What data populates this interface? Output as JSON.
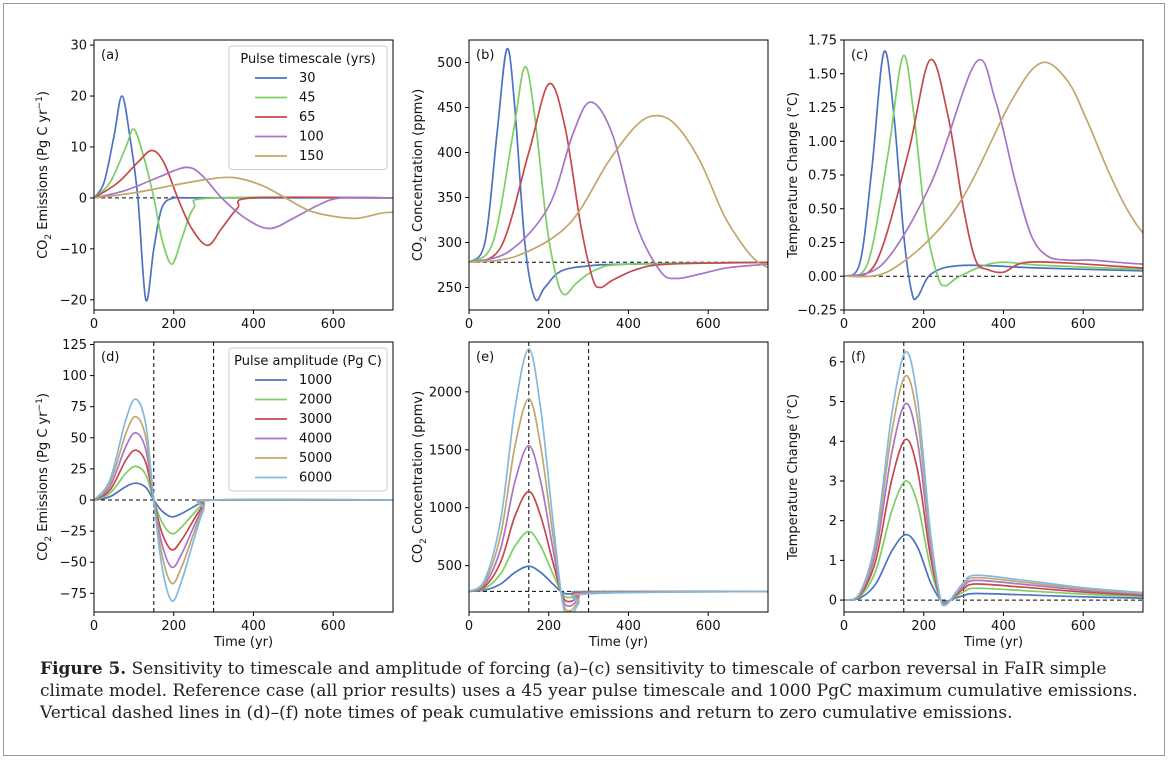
{
  "figure": {
    "caption_label": "Figure 5.",
    "caption_text": " Sensitivity to timescale and amplitude of forcing (a)–(c) sensitivity to timescale of carbon reversal in FaIR simple climate model. Reference case (all prior results) uses a 45 year pulse timescale and 1000 PgC maximum cumulative emissions. Vertical dashed lines in (d)–(f) note times of peak cumulative emissions and return to zero cumulative emissions."
  },
  "colors": [
    "#4c72c4",
    "#7ccf62",
    "#c6484a",
    "#a875c6",
    "#c2a66c",
    "#83b8df"
  ],
  "chart_data": [
    {
      "id": "a",
      "panel_label": "(a)",
      "type": "line",
      "xlabel": "",
      "ylabel": "CO2 Emissions (Pg C yr−1)",
      "xlim": [
        0,
        750
      ],
      "ylim": [
        -22,
        31
      ],
      "xticks": [
        "0",
        "200",
        "400",
        "600"
      ],
      "yticks": [
        "−20",
        "−10",
        "0",
        "10",
        "20",
        "30"
      ],
      "legend_title": "Pulse timescale (yrs)",
      "legend_loc": "upper right",
      "hline": 0,
      "vlines": [],
      "series": [
        {
          "name": "30",
          "x": [
            0,
            25,
            50,
            70,
            90,
            110,
            130,
            150,
            170,
            200,
            250,
            750
          ],
          "y": [
            0,
            3,
            12,
            20,
            12,
            0,
            -20,
            -10,
            -2,
            0,
            0,
            0
          ]
        },
        {
          "name": "45",
          "x": [
            0,
            40,
            80,
            100,
            125,
            150,
            170,
            195,
            220,
            250,
            300,
            750
          ],
          "y": [
            0,
            3,
            10,
            13.5,
            8,
            0,
            -8,
            -13,
            -8,
            -2,
            0,
            0
          ]
        },
        {
          "name": "65",
          "x": [
            0,
            60,
            110,
            145,
            175,
            210,
            245,
            285,
            320,
            360,
            400,
            750
          ],
          "y": [
            0,
            3,
            7,
            9.3,
            7,
            0,
            -6,
            -9.3,
            -6,
            -2,
            0,
            0
          ]
        },
        {
          "name": "100",
          "x": [
            0,
            80,
            160,
            230,
            270,
            320,
            380,
            440,
            500,
            560,
            620,
            750
          ],
          "y": [
            0,
            1.5,
            4,
            6,
            4.5,
            0,
            -4,
            -6,
            -4,
            -1.5,
            0,
            0
          ]
        },
        {
          "name": "150",
          "x": [
            0,
            100,
            200,
            280,
            350,
            420,
            480,
            540,
            600,
            660,
            720,
            750
          ],
          "y": [
            0,
            1,
            2.5,
            3.6,
            4,
            2.5,
            0,
            -2.5,
            -3.6,
            -4,
            -3,
            -2.8
          ]
        }
      ]
    },
    {
      "id": "b",
      "panel_label": "(b)",
      "type": "line",
      "xlabel": "",
      "ylabel": "CO2 Concentration (ppmv)",
      "xlim": [
        0,
        750
      ],
      "ylim": [
        225,
        525
      ],
      "xticks": [
        "0",
        "200",
        "400",
        "600"
      ],
      "yticks": [
        "250",
        "300",
        "350",
        "400",
        "450",
        "500"
      ],
      "legend_title": "",
      "legend_loc": "",
      "hline": 278,
      "vlines": [],
      "series": [
        {
          "name": "30",
          "x": [
            0,
            40,
            70,
            95,
            115,
            140,
            165,
            190,
            230,
            300,
            400,
            750
          ],
          "y": [
            278,
            300,
            420,
            515,
            450,
            300,
            238,
            250,
            268,
            274,
            276,
            278
          ]
        },
        {
          "name": "45",
          "x": [
            0,
            60,
            110,
            140,
            165,
            195,
            220,
            240,
            270,
            320,
            400,
            750
          ],
          "y": [
            278,
            300,
            420,
            495,
            440,
            320,
            260,
            242,
            255,
            270,
            276,
            278
          ]
        },
        {
          "name": "65",
          "x": [
            0,
            80,
            150,
            200,
            240,
            280,
            310,
            330,
            360,
            420,
            500,
            750
          ],
          "y": [
            278,
            295,
            400,
            476,
            430,
            320,
            260,
            250,
            258,
            270,
            276,
            278
          ]
        },
        {
          "name": "100",
          "x": [
            0,
            100,
            200,
            260,
            305,
            360,
            420,
            480,
            520,
            580,
            650,
            750
          ],
          "y": [
            278,
            290,
            340,
            420,
            456,
            420,
            320,
            268,
            260,
            265,
            272,
            276
          ]
        },
        {
          "name": "150",
          "x": [
            0,
            120,
            250,
            350,
            420,
            470,
            520,
            580,
            640,
            690,
            720,
            750
          ],
          "y": [
            278,
            285,
            320,
            390,
            430,
            441,
            430,
            390,
            330,
            295,
            280,
            272
          ]
        }
      ]
    },
    {
      "id": "c",
      "panel_label": "(c)",
      "type": "line",
      "xlabel": "",
      "ylabel": "Temperature Change (°C)",
      "xlim": [
        0,
        750
      ],
      "ylim": [
        -0.25,
        1.75
      ],
      "xticks": [
        "0",
        "200",
        "400",
        "600"
      ],
      "yticks": [
        "−0.25",
        "0.00",
        "0.25",
        "0.50",
        "0.75",
        "1.00",
        "1.25",
        "1.50",
        "1.75"
      ],
      "legend_title": "",
      "legend_loc": "",
      "hline": 0,
      "vlines": [],
      "series": [
        {
          "name": "30",
          "x": [
            0,
            40,
            70,
            100,
            125,
            150,
            170,
            185,
            220,
            300,
            500,
            750
          ],
          "y": [
            0,
            0.1,
            0.8,
            1.66,
            1.2,
            0.3,
            -0.12,
            -0.15,
            0.02,
            0.08,
            0.06,
            0.04
          ]
        },
        {
          "name": "45",
          "x": [
            0,
            60,
            110,
            148,
            175,
            205,
            235,
            255,
            290,
            380,
            500,
            750
          ],
          "y": [
            0,
            0.1,
            0.9,
            1.63,
            1.2,
            0.4,
            0.0,
            -0.07,
            0.0,
            0.1,
            0.08,
            0.05
          ]
        },
        {
          "name": "65",
          "x": [
            0,
            80,
            160,
            215,
            260,
            300,
            330,
            360,
            400,
            450,
            550,
            750
          ],
          "y": [
            0,
            0.1,
            0.9,
            1.6,
            1.2,
            0.5,
            0.12,
            0.05,
            0.03,
            0.1,
            0.1,
            0.06
          ]
        },
        {
          "name": "100",
          "x": [
            0,
            100,
            220,
            330,
            380,
            430,
            470,
            510,
            560,
            620,
            700,
            750
          ],
          "y": [
            0,
            0.1,
            0.7,
            1.58,
            1.3,
            0.7,
            0.3,
            0.15,
            0.12,
            0.12,
            0.1,
            0.09
          ]
        },
        {
          "name": "150",
          "x": [
            0,
            120,
            280,
            420,
            495,
            560,
            610,
            660,
            700,
            730,
            750
          ],
          "y": [
            0,
            0.05,
            0.5,
            1.3,
            1.58,
            1.45,
            1.15,
            0.8,
            0.55,
            0.4,
            0.32
          ]
        }
      ]
    },
    {
      "id": "d",
      "panel_label": "(d)",
      "type": "line",
      "xlabel": "Time (yr)",
      "ylabel": "CO2 Emissions (Pg C yr−1)",
      "xlim": [
        0,
        750
      ],
      "ylim": [
        -90,
        127
      ],
      "xticks": [
        "0",
        "200",
        "400",
        "600"
      ],
      "yticks": [
        "−75",
        "−50",
        "−25",
        "0",
        "25",
        "50",
        "75",
        "100",
        "125"
      ],
      "legend_title": "Pulse amplitude (Pg C)",
      "legend_loc": "upper right",
      "hline": 0,
      "vlines": [
        150,
        300
      ],
      "amp_series": true,
      "base": {
        "x": [
          0,
          40,
          80,
          105,
          130,
          150,
          170,
          195,
          220,
          250,
          275,
          300,
          750
        ],
        "y": [
          0,
          0.2,
          0.8,
          1,
          0.75,
          0,
          -0.65,
          -1,
          -0.8,
          -0.4,
          -0.1,
          0,
          0
        ]
      },
      "series": [
        {
          "name": "1000",
          "peak": 13.5
        },
        {
          "name": "2000",
          "peak": 27
        },
        {
          "name": "3000",
          "peak": 40
        },
        {
          "name": "4000",
          "peak": 54
        },
        {
          "name": "5000",
          "peak": 67
        },
        {
          "name": "6000",
          "peak": 81
        }
      ]
    },
    {
      "id": "e",
      "panel_label": "(e)",
      "type": "line",
      "xlabel": "Time (yr)",
      "ylabel": "CO2 Concentration (ppmv)",
      "xlim": [
        0,
        750
      ],
      "ylim": [
        100,
        2430
      ],
      "xticks": [
        "0",
        "200",
        "400",
        "600"
      ],
      "yticks": [
        "500",
        "1000",
        "1500",
        "2000"
      ],
      "legend_title": "",
      "legend_loc": "",
      "hline": 278,
      "vlines": [
        150,
        300
      ],
      "amp_series": true,
      "offset": 278,
      "base": {
        "x": [
          0,
          40,
          80,
          115,
          150,
          180,
          210,
          235,
          255,
          275,
          300,
          750
        ],
        "y": [
          0,
          0.05,
          0.3,
          0.75,
          1,
          0.75,
          0.3,
          -0.05,
          -0.1,
          -0.05,
          -0.01,
          0
        ]
      },
      "series": [
        {
          "name": "1000",
          "peak": 217
        },
        {
          "name": "2000",
          "peak": 517
        },
        {
          "name": "3000",
          "peak": 862
        },
        {
          "name": "4000",
          "peak": 1257
        },
        {
          "name": "5000",
          "peak": 1662
        },
        {
          "name": "6000",
          "peak": 2092
        }
      ]
    },
    {
      "id": "f",
      "panel_label": "(f)",
      "type": "line",
      "xlabel": "Time (yr)",
      "ylabel": "Temperature Change (°C)",
      "xlim": [
        0,
        750
      ],
      "ylim": [
        -0.3,
        6.5
      ],
      "xticks": [
        "0",
        "200",
        "400",
        "600"
      ],
      "yticks": [
        "0",
        "1",
        "2",
        "3",
        "4",
        "5",
        "6"
      ],
      "legend_title": "",
      "legend_loc": "",
      "hline": 0,
      "vlines": [
        150,
        300
      ],
      "amp_series": true,
      "base": {
        "x": [
          0,
          40,
          80,
          120,
          155,
          185,
          215,
          240,
          255,
          280,
          300,
          330,
          450,
          600,
          750
        ],
        "y": [
          0,
          0.03,
          0.25,
          0.75,
          1,
          0.8,
          0.3,
          0.02,
          -0.02,
          0.03,
          0.07,
          0.1,
          0.08,
          0.05,
          0.03
        ]
      },
      "series": [
        {
          "name": "1000",
          "peak": 1.65
        },
        {
          "name": "2000",
          "peak": 3.0
        },
        {
          "name": "3000",
          "peak": 4.05
        },
        {
          "name": "4000",
          "peak": 4.95
        },
        {
          "name": "5000",
          "peak": 5.65
        },
        {
          "name": "6000",
          "peak": 6.25
        }
      ]
    }
  ]
}
